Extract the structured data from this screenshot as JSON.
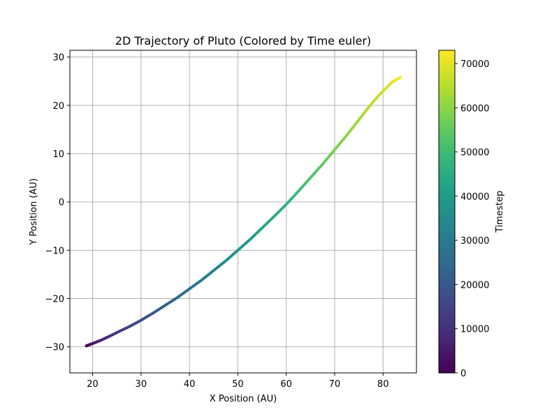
{
  "chart_data": {
    "type": "scatter",
    "title": "2D Trajectory of Pluto (Colored by Time euler)",
    "xlabel": "X Position (AU)",
    "ylabel": "Y Position (AU)",
    "xlim": [
      15.3,
      86.9
    ],
    "ylim": [
      -35.4,
      31.4
    ],
    "xticks": [
      20,
      30,
      40,
      50,
      60,
      70,
      80
    ],
    "yticks": [
      -30,
      -20,
      -10,
      0,
      10,
      20,
      30
    ],
    "grid": true,
    "colormap": "viridis",
    "colormap_stops": [
      "#440154",
      "#482878",
      "#3e4989",
      "#31688e",
      "#26828e",
      "#1f9e89",
      "#35b779",
      "#6ece58",
      "#b5de2b",
      "#fde725"
    ],
    "series": [
      {
        "x": [
          18.7,
          19.5,
          20.3,
          21.8,
          23.5,
          25.5,
          27.8,
          30.0,
          32.5,
          35.0,
          37.5,
          40.0,
          42.5,
          45.0,
          47.5,
          50.0,
          52.5,
          55.0,
          57.5,
          60.0,
          62.5,
          65.0,
          67.5,
          70.0,
          72.5,
          75.0,
          77.5,
          80.0,
          82.0,
          83.6
        ],
        "y": [
          -29.8,
          -29.5,
          -29.2,
          -28.6,
          -27.8,
          -26.8,
          -25.7,
          -24.5,
          -23.0,
          -21.4,
          -19.8,
          -18.0,
          -16.2,
          -14.2,
          -12.2,
          -10.0,
          -7.8,
          -5.4,
          -3.0,
          -0.5,
          2.2,
          5.0,
          7.8,
          10.8,
          13.8,
          17.0,
          20.2,
          23.0,
          24.9,
          25.8
        ],
        "timestep": [
          0,
          2500,
          5000,
          7500,
          10000,
          12500,
          15000,
          17500,
          20000,
          22500,
          25000,
          27500,
          30000,
          32500,
          35000,
          37500,
          40000,
          42500,
          45000,
          47500,
          50000,
          52500,
          55000,
          57500,
          60000,
          62500,
          65000,
          67500,
          70000,
          72500
        ]
      }
    ],
    "colorbar": {
      "label": "Timestep",
      "range": [
        0,
        73000
      ],
      "ticks": [
        0,
        10000,
        20000,
        30000,
        40000,
        50000,
        60000,
        70000
      ]
    }
  }
}
